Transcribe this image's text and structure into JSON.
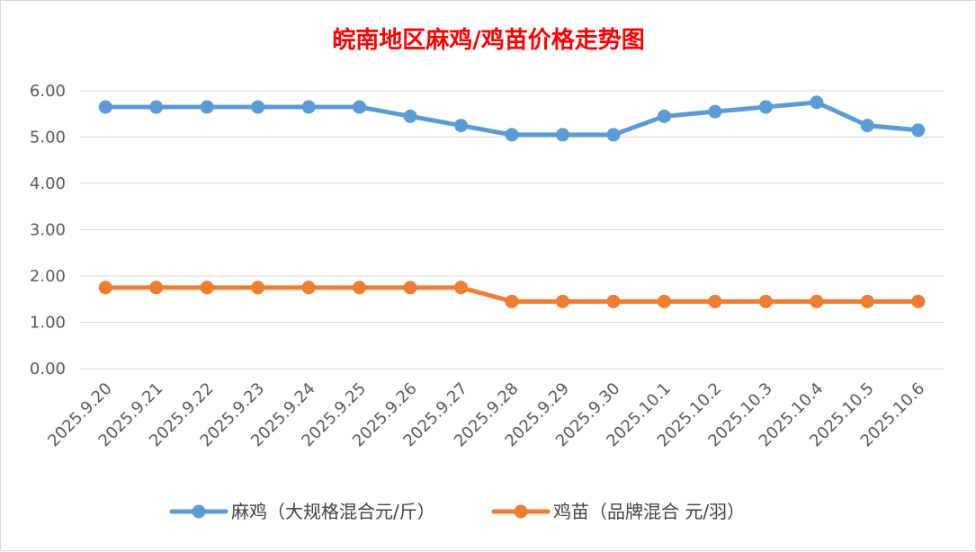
{
  "chart_data": {
    "type": "line",
    "title": "皖南地区麻鸡/鸡苗价格走势图",
    "xlabel": "",
    "ylabel": "",
    "categories": [
      "2025.9.20",
      "2025.9.21",
      "2025.9.22",
      "2025.9.23",
      "2025.9.24",
      "2025.9.25",
      "2025.9.26",
      "2025.9.27",
      "2025.9.28",
      "2025.9.29",
      "2025.9.30",
      "2025.10.1",
      "2025.10.2",
      "2025.10.3",
      "2025.10.4",
      "2025.10.5",
      "2025.10.6"
    ],
    "ylim": [
      0,
      6
    ],
    "yticks": [
      "0.00",
      "1.00",
      "2.00",
      "3.00",
      "4.00",
      "5.00",
      "6.00"
    ],
    "grid": true,
    "legend_position": "bottom",
    "series": [
      {
        "name": "麻鸡（大规格混合元/斤）",
        "color": "#5b9bd5",
        "values": [
          5.65,
          5.65,
          5.65,
          5.65,
          5.65,
          5.65,
          5.45,
          5.25,
          5.05,
          5.05,
          5.05,
          5.45,
          5.55,
          5.65,
          5.75,
          5.25,
          5.15
        ]
      },
      {
        "name": "鸡苗（品牌混合 元/羽）",
        "color": "#ed7d31",
        "values": [
          1.75,
          1.75,
          1.75,
          1.75,
          1.75,
          1.75,
          1.75,
          1.75,
          1.45,
          1.45,
          1.45,
          1.45,
          1.45,
          1.45,
          1.45,
          1.45,
          1.45
        ]
      }
    ]
  }
}
